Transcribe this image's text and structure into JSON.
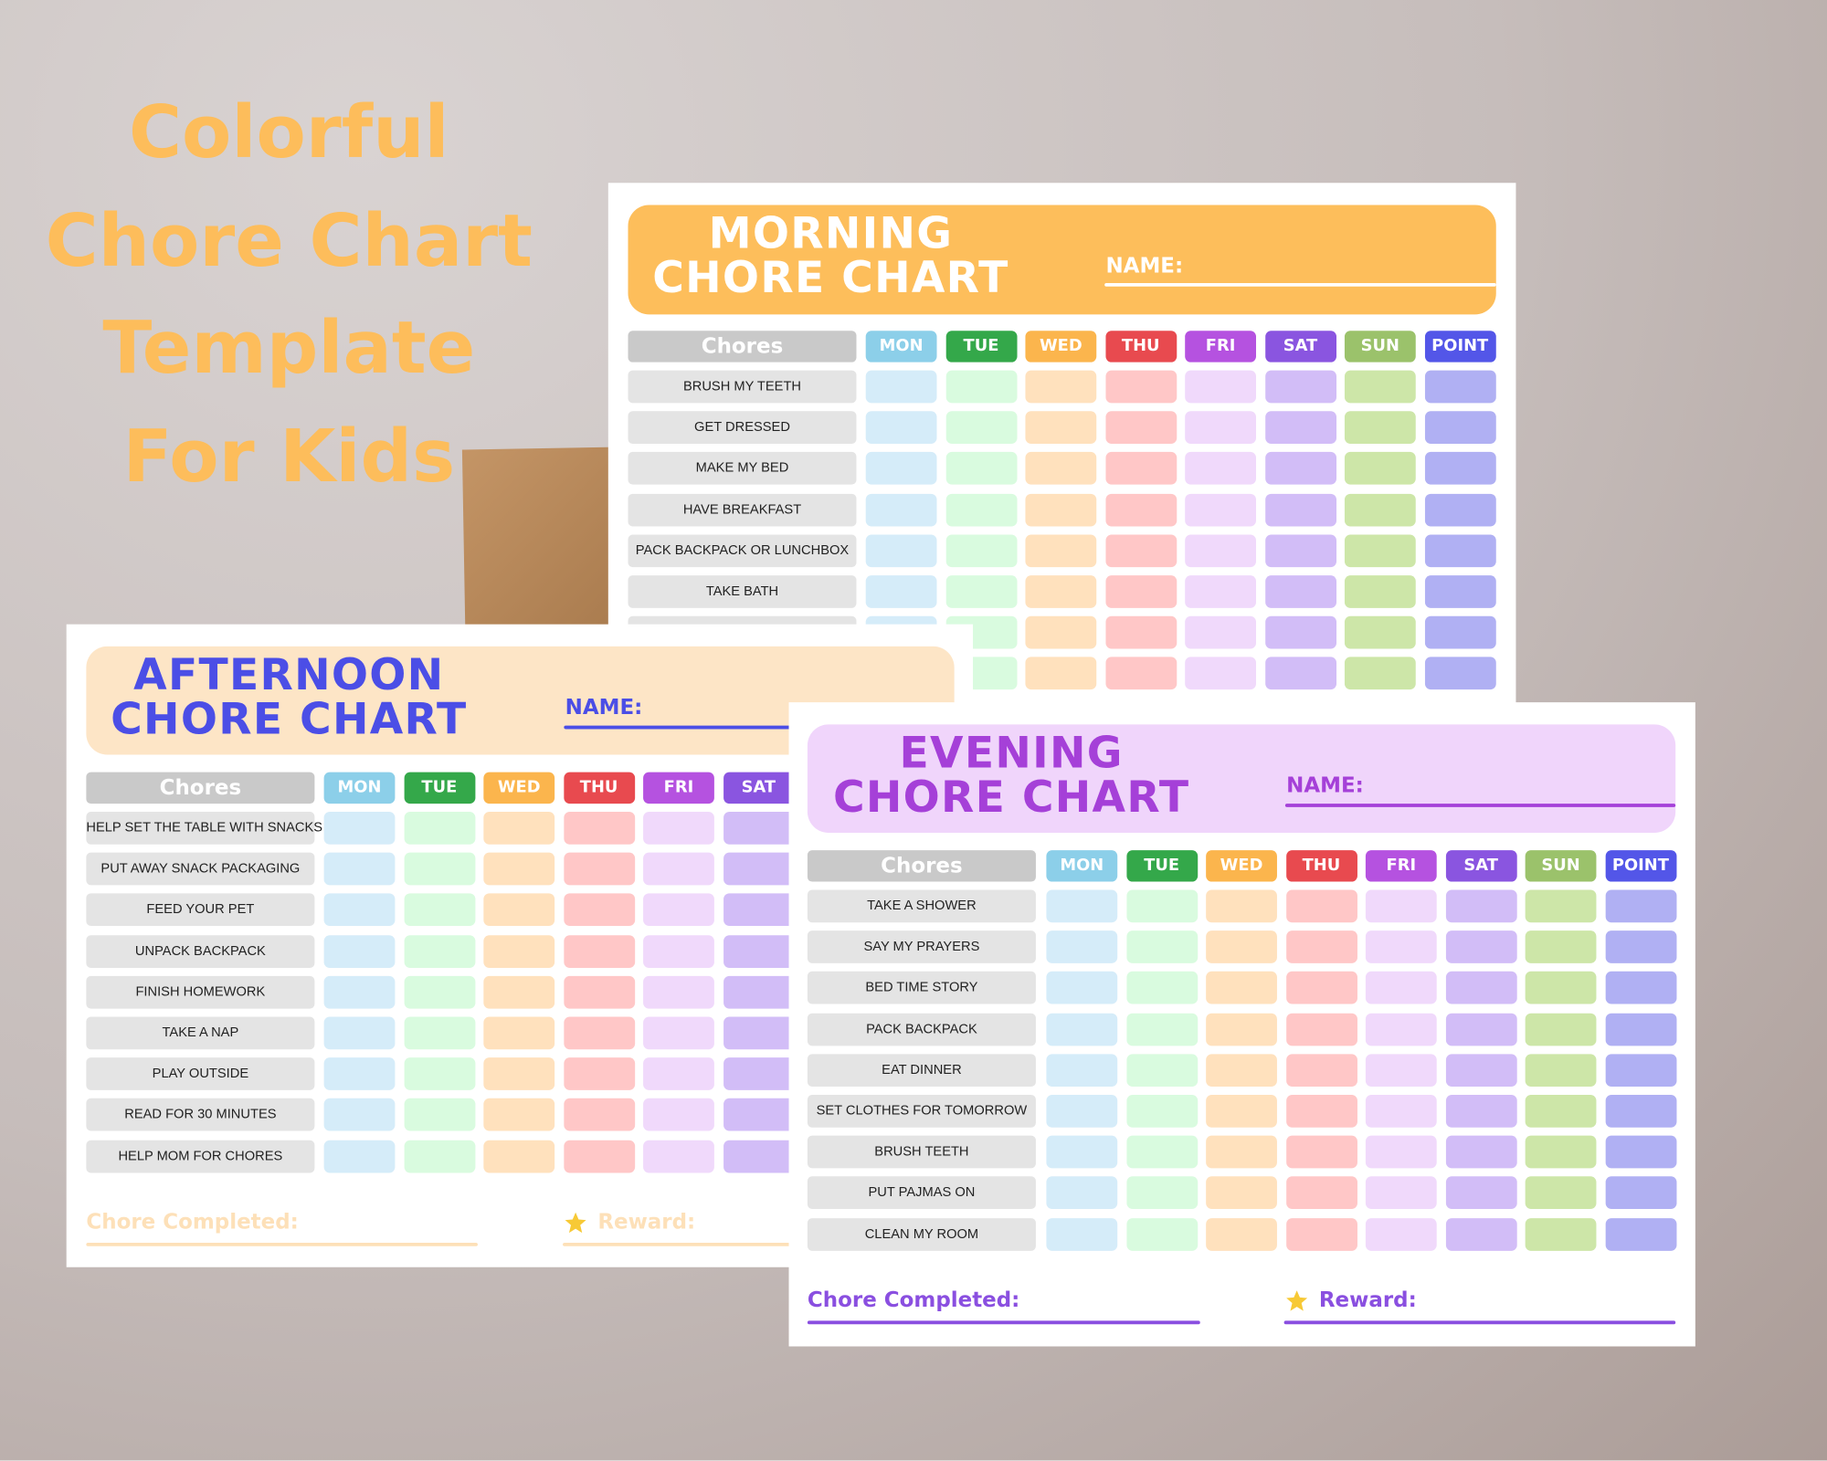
{
  "title_lines": [
    "Colorful",
    "Chore Chart",
    "Template",
    "For Kids"
  ],
  "title_color": "#fdbd5b",
  "charts": [
    {
      "title_lines": [
        "MORNING",
        "CHORE CHART"
      ],
      "name_label": "NAME:",
      "chores_header": "Chores",
      "theme": {
        "header_bg": "#fdbe5b",
        "title_color": "#ffffff",
        "accent": "#ffffff"
      },
      "days": [
        {
          "label": "MON",
          "color": "#8ccfe9",
          "cell_color": "#d5ecf9"
        },
        {
          "label": "TUE",
          "color": "#34a84a",
          "cell_color": "#d9fbdf"
        },
        {
          "label": "WED",
          "color": "#fbb54d",
          "cell_color": "#ffe1bd"
        },
        {
          "label": "THU",
          "color": "#e84a4f",
          "cell_color": "#ffc7c7"
        },
        {
          "label": "FRI",
          "color": "#b552e0",
          "cell_color": "#f0d9fb"
        },
        {
          "label": "SAT",
          "color": "#8a55e0",
          "cell_color": "#d2bdf7"
        },
        {
          "label": "SUN",
          "color": "#9bc26b",
          "cell_color": "#cde6a8"
        },
        {
          "label": "POINT",
          "color": "#5356e8",
          "cell_color": "#b0b0f3"
        }
      ],
      "chores": [
        "BRUSH MY TEETH",
        "GET DRESSED",
        "MAKE MY BED",
        "HAVE BREAKFAST",
        "PACK BACKPACK OR LUNCHBOX",
        "TAKE BATH"
      ]
    },
    {
      "title_lines": [
        "AFTERNOON",
        "CHORE CHART"
      ],
      "name_label": "NAME:",
      "chores_header": "Chores",
      "theme": {
        "header_bg": "#fde5c6",
        "title_color": "#4b4ee6",
        "accent": "#4b4ee6",
        "footer_color": "#fde0b8"
      },
      "days": [
        {
          "label": "MON",
          "color": "#8ccfe9",
          "cell_color": "#d5ecf9"
        },
        {
          "label": "TUE",
          "color": "#34a84a",
          "cell_color": "#d9fbdf"
        },
        {
          "label": "WED",
          "color": "#fbb54d",
          "cell_color": "#ffe1bd"
        },
        {
          "label": "THU",
          "color": "#e84a4f",
          "cell_color": "#ffc7c7"
        },
        {
          "label": "FRI",
          "color": "#b552e0",
          "cell_color": "#f0d9fb"
        },
        {
          "label": "SAT",
          "color": "#8a55e0",
          "cell_color": "#d2bdf7"
        }
      ],
      "chores": [
        "HELP SET THE TABLE WITH SNACKS",
        "PUT AWAY SNACK PACKAGING",
        "FEED YOUR PET",
        "UNPACK BACKPACK",
        "FINISH HOMEWORK",
        "TAKE A NAP",
        "PLAY OUTSIDE",
        "READ FOR 30 MINUTES",
        "HELP MOM FOR CHORES"
      ],
      "footer": {
        "completed": "Chore Completed:",
        "reward": "Reward:"
      }
    },
    {
      "title_lines": [
        "EVENING",
        "CHORE CHART"
      ],
      "name_label": "NAME:",
      "chores_header": "Chores",
      "theme": {
        "header_bg": "#f0d5fb",
        "title_color": "#a540d8",
        "accent": "#a540d8",
        "footer_color": "#8a4fe0"
      },
      "days": [
        {
          "label": "MON",
          "color": "#8ccfe9",
          "cell_color": "#d5ecf9"
        },
        {
          "label": "TUE",
          "color": "#34a84a",
          "cell_color": "#d9fbdf"
        },
        {
          "label": "WED",
          "color": "#fbb54d",
          "cell_color": "#ffe1bd"
        },
        {
          "label": "THU",
          "color": "#e84a4f",
          "cell_color": "#ffc7c7"
        },
        {
          "label": "FRI",
          "color": "#b552e0",
          "cell_color": "#f0d9fb"
        },
        {
          "label": "SAT",
          "color": "#8a55e0",
          "cell_color": "#d2bdf7"
        },
        {
          "label": "SUN",
          "color": "#9bc26b",
          "cell_color": "#cde6a8"
        },
        {
          "label": "POINT",
          "color": "#5356e8",
          "cell_color": "#b0b0f3"
        }
      ],
      "chores": [
        "TAKE A SHOWER",
        "SAY MY PRAYERS",
        "BED TIME STORY",
        "PACK BACKPACK",
        "EAT DINNER",
        "SET CLOTHES FOR TOMORROW",
        "BRUSH TEETH",
        "PUT PAJMAS ON",
        "CLEAN MY ROOM"
      ],
      "footer": {
        "completed": "Chore Completed:",
        "reward": "Reward:"
      }
    }
  ]
}
